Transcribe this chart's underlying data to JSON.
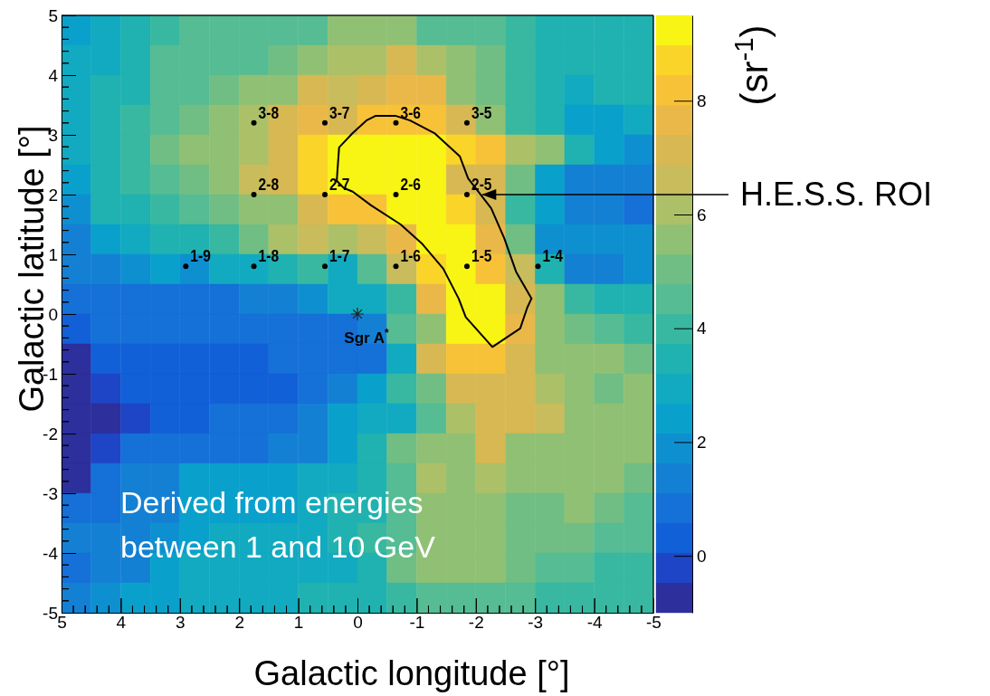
{
  "chart_data": [
    {
      "type": "heatmap",
      "xlabel": "Galactic longitude [°]",
      "ylabel": "Galactic latitude [°]",
      "clabel": "(sr$^{-1}$)",
      "xlim": [
        5,
        -5
      ],
      "xticks": [
        5,
        4,
        3,
        2,
        1,
        0,
        -1,
        -2,
        -3,
        -4,
        -5
      ],
      "ylim": [
        -5,
        5
      ],
      "yticks": [
        -5,
        -4,
        -3,
        -2,
        -1,
        0,
        1,
        2,
        3,
        4,
        5
      ],
      "clim": [
        -1,
        9.5
      ],
      "cticks": [
        0,
        2,
        4,
        6,
        8
      ],
      "grid": false,
      "cells": [
        [
          2.5,
          3,
          3.5,
          3.8,
          4.3,
          4.5,
          4.5,
          4.5,
          4.5,
          5.5,
          5.5,
          5.5,
          4.5,
          4.5,
          4.3,
          3.8,
          3.3,
          3.3,
          3.3,
          3.5
        ],
        [
          3,
          2.8,
          3.5,
          4.3,
          4.3,
          4.3,
          4.3,
          4.8,
          5.5,
          6.3,
          6.3,
          7,
          6,
          5.3,
          4.8,
          3.8,
          3.5,
          3.3,
          3.3,
          3.3
        ],
        [
          2.8,
          3.3,
          3.5,
          4.3,
          4.3,
          5,
          5.3,
          5.5,
          7.3,
          6.5,
          7.3,
          7.8,
          7.8,
          5.3,
          4.8,
          3.8,
          3.3,
          2.8,
          3.3,
          3.5
        ],
        [
          2.8,
          3.5,
          4,
          4.3,
          5,
          5.3,
          6.3,
          7,
          7.5,
          7.3,
          8,
          8.3,
          8.3,
          7.3,
          5.5,
          3.8,
          3.5,
          2.5,
          2.5,
          3
        ],
        [
          2.8,
          3.5,
          3.8,
          5,
          5.3,
          5.5,
          6.3,
          7,
          8.5,
          9.3,
          9.3,
          9.3,
          9.3,
          8.5,
          8.3,
          6.3,
          5.3,
          3.5,
          2.5,
          1.8
        ],
        [
          2.5,
          3.5,
          3.8,
          4.5,
          5,
          5.8,
          6.5,
          7,
          8.5,
          9.3,
          9.3,
          9.3,
          9.3,
          7.3,
          7.3,
          4.8,
          2.5,
          1.3,
          1.3,
          1.3
        ],
        [
          2,
          3.3,
          3.5,
          3.8,
          4.3,
          5,
          5.5,
          5.5,
          7,
          8.3,
          8.3,
          9.3,
          9.3,
          8.5,
          7,
          3.8,
          2.3,
          1.3,
          1.3,
          0.7
        ],
        [
          1.5,
          2.5,
          2.8,
          3.3,
          3.5,
          3.8,
          5,
          6,
          6.5,
          6.3,
          6.5,
          7.8,
          9.3,
          9.3,
          7.5,
          5,
          1.8,
          1.8,
          1.8,
          1.8
        ],
        [
          1.2,
          1.5,
          2,
          2.3,
          2,
          2.8,
          2.8,
          3.5,
          4,
          2.8,
          4.3,
          6.8,
          8.5,
          9.3,
          8.3,
          6.8,
          3.5,
          1.5,
          1.5,
          2
        ],
        [
          1,
          1,
          1,
          1,
          1,
          1,
          1.2,
          1.5,
          2,
          2.8,
          3,
          4,
          7.5,
          9.3,
          9.3,
          7,
          5.3,
          3.8,
          3.5,
          3.5
        ],
        [
          0.3,
          1,
          0.8,
          0.8,
          0.8,
          0.8,
          0.8,
          0.8,
          1,
          1,
          1.3,
          4.3,
          5.3,
          9.3,
          9.3,
          7.8,
          5.3,
          5,
          4.3,
          3.8
        ],
        [
          -0.5,
          0.3,
          0.3,
          0.3,
          0.3,
          0.3,
          0.3,
          0.8,
          0.8,
          0.8,
          0.8,
          3,
          7,
          8.3,
          8.3,
          7,
          5.5,
          5.5,
          5.8,
          5
        ],
        [
          -0.5,
          -0.3,
          0.3,
          0.3,
          0.3,
          0.3,
          0.3,
          0.3,
          1,
          1.5,
          2.3,
          3.8,
          4.8,
          7.3,
          7.3,
          7.3,
          6,
          5.3,
          4.8,
          5.5
        ],
        [
          -0.5,
          -0.5,
          -0.3,
          0.3,
          0.3,
          0.8,
          0.8,
          0.8,
          1.5,
          2.5,
          2.8,
          3,
          4.5,
          6,
          7,
          7,
          6.5,
          5.5,
          5.5,
          5.5
        ],
        [
          -0.5,
          -0.3,
          1,
          1,
          1,
          1,
          1,
          1.3,
          1.5,
          2.5,
          3.5,
          4.8,
          5.3,
          5.8,
          7,
          5.8,
          5.8,
          5.5,
          5.8,
          5.8
        ],
        [
          -0.5,
          0.8,
          1.3,
          1.3,
          2.3,
          2.3,
          2.5,
          2.5,
          3,
          3,
          3.5,
          4.5,
          6,
          5.8,
          6.3,
          5.5,
          5.5,
          5.5,
          5.5,
          5
        ],
        [
          0.8,
          1,
          1.3,
          1.5,
          2.3,
          2.5,
          2.5,
          2.5,
          3,
          3.3,
          3.5,
          4.3,
          5.5,
          5.8,
          5.5,
          5,
          5,
          5.8,
          4.8,
          4.5
        ],
        [
          1.3,
          1.3,
          1.5,
          2,
          2.5,
          2.8,
          2.8,
          2.8,
          3,
          3.3,
          3.8,
          4.5,
          5.5,
          5.5,
          5.8,
          5,
          4.8,
          4.8,
          4.5,
          4.5
        ],
        [
          0.8,
          1.3,
          1.5,
          2.3,
          2.8,
          2.8,
          2.8,
          2.8,
          3,
          3,
          3.5,
          5,
          5.3,
          5.3,
          5.3,
          4.8,
          4.3,
          4.3,
          3.8,
          3.8
        ],
        [
          1.5,
          2,
          2.3,
          2.3,
          2.8,
          2.8,
          2.8,
          2.8,
          3.3,
          3.3,
          3.5,
          3.8,
          4.3,
          4.3,
          4.3,
          4.3,
          3.8,
          3.8,
          3.8,
          3.8
        ]
      ],
      "annotations": [
        "Derived from energies between 1 and 10 GeV"
      ]
    },
    {
      "type": "line",
      "xlim": [
        5,
        -5
      ],
      "ylim": [
        -5,
        5
      ],
      "tick_labels": false,
      "xticks": [
        5,
        4,
        3,
        2,
        1,
        0,
        -1,
        -2,
        -3,
        -4,
        -5
      ],
      "yticks": [
        -5,
        -4,
        -3,
        -2,
        -1,
        0,
        1,
        2,
        3,
        4,
        5
      ],
      "series": [
        {
          "type": "line",
          "color": "#000000",
          "x": [
            0.35,
            0.31,
            0.08,
            -0.15,
            -0.31,
            -0.64,
            -0.89,
            -1.3,
            -1.73,
            -1.87,
            -2.26,
            -2.48,
            -2.68,
            -2.94
          ],
          "values": [
            2.23,
            2.79,
            3.03,
            3.24,
            3.32,
            3.32,
            3.24,
            3.03,
            2.64,
            2.27,
            1.77,
            1.27,
            0.71,
            0.26
          ]
        },
        {
          "type": "line",
          "color": "#000000",
          "x": [
            -2.94,
            -2.87,
            -2.75,
            -2.28,
            -1.83,
            -1.71,
            -1.45,
            -1.1,
            -0.73,
            -0.23,
            0.08,
            0.23,
            0.35
          ],
          "values": [
            0.26,
            0.11,
            -0.24,
            -0.55,
            -0.05,
            0.26,
            0.76,
            1.17,
            1.5,
            1.82,
            2.05,
            2.11,
            2.23
          ]
        },
        {
          "type": "scatter",
          "color": "#000000",
          "marker": "circle",
          "x": [
            1.75,
            0.55,
            -0.65,
            -1.85,
            1.75,
            0.55,
            -0.65,
            -1.85,
            2.9,
            1.75,
            0.55,
            -0.65,
            -1.85,
            -3.05
          ],
          "values": [
            3.2,
            3.2,
            3.2,
            3.2,
            2.0,
            2.0,
            2.0,
            2.0,
            0.8,
            0.8,
            0.8,
            0.8,
            0.8,
            0.8
          ],
          "value_labels": [
            "3-8",
            "3-7",
            "3-6",
            "3-5",
            "2-8",
            "2-7",
            "2-6",
            "2-5",
            "1-9",
            "1-8",
            "1-7",
            "1-6",
            "1-5",
            "1-4"
          ]
        },
        {
          "type": "scatter",
          "color": "#222222",
          "marker": "cross",
          "x": [
            0
          ],
          "values": [
            0
          ],
          "value_labels": [
            "Sgr A$^{*}$"
          ]
        }
      ],
      "annotations": [
        {
          "text": "H.E.S.S. ROI",
          "x": -2.1,
          "y": 2.0
        }
      ]
    }
  ]
}
